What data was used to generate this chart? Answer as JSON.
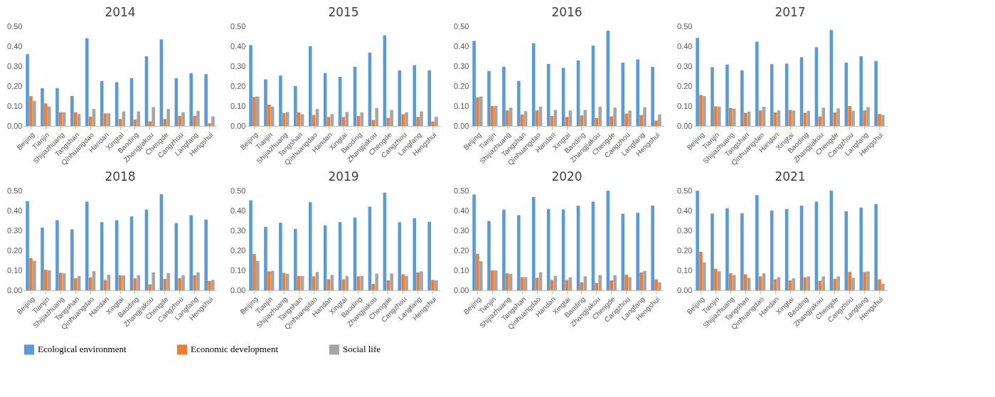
{
  "chart_data": [
    {
      "type": "bar",
      "title": "2014",
      "categories": [
        "Beijing",
        "Tianjin",
        "Shijiazhuang",
        "Tangshan",
        "Qinhuangdao",
        "Handan",
        "Xingtai",
        "Baoding",
        "Zhangjiakou",
        "Chengde",
        "Cangzhou",
        "Langfang",
        "Hengshui"
      ],
      "ylim": [
        0,
        0.5
      ],
      "yticks": [
        {
          "value": 0,
          "label": "0.00"
        },
        {
          "value": 0.1,
          "label": "0.10"
        },
        {
          "value": 0.2,
          "label": "0.20"
        },
        {
          "value": 0.3,
          "label": "0.30"
        },
        {
          "value": 0.4,
          "label": "0.40"
        },
        {
          "value": 0.5,
          "label": "0.50"
        }
      ],
      "legend": "bottom",
      "series": [
        {
          "name": "Ecological environment",
          "color": "#5b9bd5",
          "values": [
            0.36,
            0.19,
            0.19,
            0.15,
            0.44,
            0.225,
            0.22,
            0.24,
            0.35,
            0.435,
            0.24,
            0.265,
            0.26
          ]
        },
        {
          "name": "Economic development",
          "color": "#ed7d31",
          "values": [
            0.15,
            0.113,
            0.069,
            0.069,
            0.047,
            0.063,
            0.035,
            0.032,
            0.023,
            0.035,
            0.05,
            0.05,
            0.013
          ]
        },
        {
          "name": "Social life",
          "color": "#a5a5a5",
          "values": [
            0.126,
            0.097,
            0.069,
            0.06,
            0.085,
            0.063,
            0.073,
            0.073,
            0.095,
            0.085,
            0.069,
            0.076,
            0.048
          ]
        }
      ]
    },
    {
      "type": "bar",
      "title": "2015",
      "categories": [
        "Beijing",
        "Tianjin",
        "Shijiazhuang",
        "Tangshan",
        "Qinhuangdao",
        "Handan",
        "Xingtai",
        "Baoding",
        "Zhangjiakou",
        "Chengde",
        "Cangzhou",
        "Langfang",
        "Hengshui"
      ],
      "ylim": [
        0,
        0.5
      ],
      "yticks": [
        {
          "value": 0,
          "label": "0.00"
        },
        {
          "value": 0.1,
          "label": "0.10"
        },
        {
          "value": 0.2,
          "label": "0.20"
        },
        {
          "value": 0.3,
          "label": "0.30"
        },
        {
          "value": 0.4,
          "label": "0.40"
        },
        {
          "value": 0.5,
          "label": "0.50"
        }
      ],
      "legend": "bottom",
      "series": [
        {
          "name": "Ecological environment",
          "color": "#5b9bd5",
          "values": [
            0.406,
            0.234,
            0.253,
            0.2,
            0.4,
            0.265,
            0.247,
            0.297,
            0.368,
            0.455,
            0.279,
            0.305,
            0.279
          ]
        },
        {
          "name": "Economic development",
          "color": "#ed7d31",
          "values": [
            0.145,
            0.107,
            0.065,
            0.068,
            0.055,
            0.045,
            0.045,
            0.05,
            0.03,
            0.04,
            0.058,
            0.045,
            0.022
          ]
        },
        {
          "name": "Social life",
          "color": "#a5a5a5",
          "values": [
            0.148,
            0.097,
            0.07,
            0.058,
            0.085,
            0.06,
            0.07,
            0.068,
            0.09,
            0.08,
            0.068,
            0.073,
            0.046
          ]
        }
      ]
    },
    {
      "type": "bar",
      "title": "2016",
      "categories": [
        "Beijing",
        "Tianjin",
        "Shijiazhuang",
        "Tangshan",
        "Qinhuangdao",
        "Handan",
        "Xingtai",
        "Baoding",
        "Zhangjiakou",
        "Chengde",
        "Cangzhou",
        "Langfang",
        "Hengshui"
      ],
      "ylim": [
        0,
        0.5
      ],
      "yticks": [
        {
          "value": 0,
          "label": "0.00"
        },
        {
          "value": 0.1,
          "label": "0.10"
        },
        {
          "value": 0.2,
          "label": "0.20"
        },
        {
          "value": 0.3,
          "label": "0.30"
        },
        {
          "value": 0.4,
          "label": "0.40"
        },
        {
          "value": 0.5,
          "label": "0.50"
        }
      ],
      "legend": "bottom",
      "series": [
        {
          "name": "Ecological environment",
          "color": "#5b9bd5",
          "values": [
            0.427,
            0.276,
            0.297,
            0.226,
            0.415,
            0.311,
            0.292,
            0.329,
            0.403,
            0.479,
            0.318,
            0.334,
            0.297
          ]
        },
        {
          "name": "Economic development",
          "color": "#ed7d31",
          "values": [
            0.143,
            0.1,
            0.078,
            0.057,
            0.078,
            0.05,
            0.045,
            0.053,
            0.04,
            0.048,
            0.062,
            0.055,
            0.027
          ]
        },
        {
          "name": "Social life",
          "color": "#a5a5a5",
          "values": [
            0.148,
            0.1,
            0.092,
            0.074,
            0.097,
            0.08,
            0.078,
            0.08,
            0.096,
            0.092,
            0.077,
            0.094,
            0.058
          ]
        }
      ]
    },
    {
      "type": "bar",
      "title": "2017",
      "categories": [
        "Beijing",
        "Tianjin",
        "Shijiazhuang",
        "Tangshan",
        "Qinhuangdao",
        "Handan",
        "Xingtai",
        "Baoding",
        "Zhangjiakou",
        "Chengde",
        "Cangzhou",
        "Langfang",
        "Hengshui"
      ],
      "ylim": [
        0,
        0.5
      ],
      "yticks": [
        {
          "value": 0,
          "label": "0.00"
        },
        {
          "value": 0.1,
          "label": "0.10"
        },
        {
          "value": 0.2,
          "label": "0.20"
        },
        {
          "value": 0.3,
          "label": "0.30"
        },
        {
          "value": 0.4,
          "label": "0.40"
        },
        {
          "value": 0.5,
          "label": "0.50"
        }
      ],
      "legend": "bottom",
      "series": [
        {
          "name": "Ecological environment",
          "color": "#5b9bd5",
          "values": [
            0.442,
            0.295,
            0.308,
            0.279,
            0.423,
            0.31,
            0.313,
            0.345,
            0.395,
            0.481,
            0.318,
            0.35,
            0.326
          ]
        },
        {
          "name": "Economic development",
          "color": "#ed7d31",
          "values": [
            0.155,
            0.098,
            0.09,
            0.066,
            0.078,
            0.068,
            0.08,
            0.066,
            0.047,
            0.068,
            0.1,
            0.078,
            0.06
          ]
        },
        {
          "name": "Social life",
          "color": "#a5a5a5",
          "values": [
            0.15,
            0.097,
            0.087,
            0.072,
            0.096,
            0.078,
            0.077,
            0.076,
            0.092,
            0.088,
            0.076,
            0.094,
            0.055
          ]
        }
      ]
    },
    {
      "type": "bar",
      "title": "2018",
      "categories": [
        "Beijing",
        "Tianjin",
        "Shijiazhuang",
        "Tangshan",
        "Qinhuangdao",
        "Handan",
        "Xingtai",
        "Baoding",
        "Zhangjiakou",
        "Chengde",
        "Cangzhou",
        "Langfang",
        "Hengshui"
      ],
      "ylim": [
        0,
        0.5
      ],
      "yticks": [
        {
          "value": 0,
          "label": "0.00"
        },
        {
          "value": 0.1,
          "label": "0.10"
        },
        {
          "value": 0.2,
          "label": "0.20"
        },
        {
          "value": 0.3,
          "label": "0.30"
        },
        {
          "value": 0.4,
          "label": "0.40"
        },
        {
          "value": 0.5,
          "label": "0.50"
        }
      ],
      "legend": "bottom",
      "series": [
        {
          "name": "Ecological environment",
          "color": "#5b9bd5",
          "values": [
            0.447,
            0.315,
            0.352,
            0.306,
            0.445,
            0.342,
            0.352,
            0.371,
            0.405,
            0.482,
            0.337,
            0.377,
            0.355
          ]
        },
        {
          "name": "Economic development",
          "color": "#ed7d31",
          "values": [
            0.162,
            0.103,
            0.088,
            0.06,
            0.065,
            0.052,
            0.075,
            0.06,
            0.03,
            0.057,
            0.06,
            0.075,
            0.047
          ]
        },
        {
          "name": "Social life",
          "color": "#a5a5a5",
          "values": [
            0.148,
            0.1,
            0.085,
            0.072,
            0.096,
            0.078,
            0.074,
            0.076,
            0.09,
            0.087,
            0.075,
            0.09,
            0.052
          ]
        }
      ]
    },
    {
      "type": "bar",
      "title": "2019",
      "categories": [
        "Beijing",
        "Tianjin",
        "Shijiazhuang",
        "Tangshan",
        "Qinhuangdao",
        "Handan",
        "Xingtai",
        "Baoding",
        "Zhangjiakou",
        "Chengde",
        "Cangzhou",
        "Langfang",
        "Hengshui"
      ],
      "ylim": [
        0,
        0.5
      ],
      "yticks": [
        {
          "value": 0,
          "label": "0.00"
        },
        {
          "value": 0.1,
          "label": "0.10"
        },
        {
          "value": 0.2,
          "label": "0.20"
        },
        {
          "value": 0.3,
          "label": "0.30"
        },
        {
          "value": 0.4,
          "label": "0.40"
        },
        {
          "value": 0.5,
          "label": "0.50"
        }
      ],
      "legend": "bottom",
      "series": [
        {
          "name": "Ecological environment",
          "color": "#5b9bd5",
          "values": [
            0.452,
            0.318,
            0.339,
            0.308,
            0.442,
            0.326,
            0.342,
            0.365,
            0.42,
            0.49,
            0.342,
            0.362,
            0.344
          ]
        },
        {
          "name": "Economic development",
          "color": "#ed7d31",
          "values": [
            0.182,
            0.095,
            0.087,
            0.072,
            0.07,
            0.055,
            0.055,
            0.07,
            0.032,
            0.05,
            0.08,
            0.09,
            0.052
          ]
        },
        {
          "name": "Social life",
          "color": "#a5a5a5",
          "values": [
            0.147,
            0.098,
            0.083,
            0.072,
            0.092,
            0.077,
            0.072,
            0.072,
            0.084,
            0.084,
            0.072,
            0.095,
            0.05
          ]
        }
      ]
    },
    {
      "type": "bar",
      "title": "2020",
      "categories": [
        "Beijing",
        "Tianjin",
        "Shijiazhuang",
        "Tangshan",
        "Qinhuangdao",
        "Handan",
        "Xingtai",
        "Baoding",
        "Zhangjiakou",
        "Chengde",
        "Cangzhou",
        "Langfang",
        "Hengshui"
      ],
      "ylim": [
        0,
        0.5
      ],
      "yticks": [
        {
          "value": 0,
          "label": "0.00"
        },
        {
          "value": 0.1,
          "label": "0.10"
        },
        {
          "value": 0.2,
          "label": "0.20"
        },
        {
          "value": 0.3,
          "label": "0.30"
        },
        {
          "value": 0.4,
          "label": "0.40"
        },
        {
          "value": 0.5,
          "label": "0.50"
        }
      ],
      "legend": "bottom",
      "series": [
        {
          "name": "Ecological environment",
          "color": "#5b9bd5",
          "values": [
            0.48,
            0.348,
            0.405,
            0.377,
            0.468,
            0.408,
            0.406,
            0.425,
            0.445,
            0.5,
            0.384,
            0.389,
            0.425
          ]
        },
        {
          "name": "Economic development",
          "color": "#ed7d31",
          "values": [
            0.183,
            0.1,
            0.085,
            0.066,
            0.063,
            0.052,
            0.052,
            0.04,
            0.037,
            0.05,
            0.078,
            0.09,
            0.055
          ]
        },
        {
          "name": "Social life",
          "color": "#a5a5a5",
          "values": [
            0.146,
            0.1,
            0.082,
            0.066,
            0.091,
            0.072,
            0.065,
            0.07,
            0.077,
            0.075,
            0.066,
            0.097,
            0.04
          ]
        }
      ]
    },
    {
      "type": "bar",
      "title": "2021",
      "categories": [
        "Beijing",
        "Tianjin",
        "Shijiazhuang",
        "Tangshan",
        "Qinhuangdao",
        "Handan",
        "Xingtai",
        "Baoding",
        "Zhangjiakou",
        "Chengde",
        "Cangzhou",
        "Langfang",
        "Hengshui"
      ],
      "ylim": [
        0,
        0.5
      ],
      "yticks": [
        {
          "value": 0,
          "label": "0.00"
        },
        {
          "value": 0.1,
          "label": "0.10"
        },
        {
          "value": 0.2,
          "label": "0.20"
        },
        {
          "value": 0.3,
          "label": "0.30"
        },
        {
          "value": 0.4,
          "label": "0.40"
        },
        {
          "value": 0.5,
          "label": "0.50"
        }
      ],
      "legend": "bottom",
      "series": [
        {
          "name": "Ecological environment",
          "color": "#5b9bd5",
          "values": [
            0.5,
            0.385,
            0.412,
            0.387,
            0.478,
            0.4,
            0.408,
            0.425,
            0.445,
            0.5,
            0.397,
            0.415,
            0.432
          ]
        },
        {
          "name": "Economic development",
          "color": "#ed7d31",
          "values": [
            0.193,
            0.108,
            0.085,
            0.08,
            0.07,
            0.055,
            0.05,
            0.065,
            0.048,
            0.057,
            0.092,
            0.092,
            0.055
          ]
        },
        {
          "name": "Social life",
          "color": "#a5a5a5",
          "values": [
            0.14,
            0.095,
            0.077,
            0.062,
            0.085,
            0.066,
            0.06,
            0.07,
            0.07,
            0.07,
            0.062,
            0.095,
            0.033
          ]
        }
      ]
    }
  ]
}
